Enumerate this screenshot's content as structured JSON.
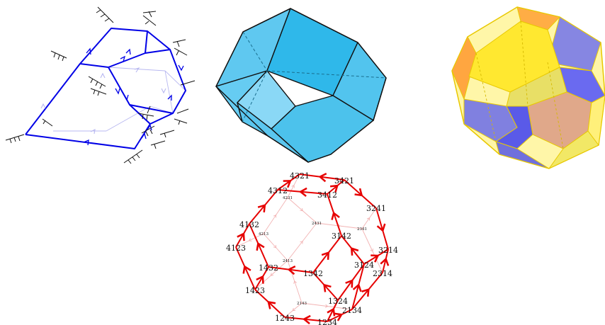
{
  "colors": {
    "blue_edge": "#0000e6",
    "blue_faint": "#b8b8f0",
    "cyan_face_light": "#7fd4f5",
    "cyan_face_mid": "#52c4ee",
    "cyan_face_dark": "#2fb3e6",
    "red_edge": "#e60000",
    "red_faint": "#f2b3b3",
    "yellow": "#ffee33",
    "orange": "#ffa640",
    "violet": "#7a7ae6",
    "salmon": "#e4a88a"
  },
  "permutahedron_labels": {
    "front": [
      {
        "id": "p4321",
        "text": "4321"
      },
      {
        "id": "p3421",
        "text": "3421"
      },
      {
        "id": "p4312",
        "text": "4312"
      },
      {
        "id": "p3412",
        "text": "3412"
      },
      {
        "id": "p3241",
        "text": "3241"
      },
      {
        "id": "p4132",
        "text": "4132"
      },
      {
        "id": "p3142",
        "text": "3142"
      },
      {
        "id": "p4123",
        "text": "4123"
      },
      {
        "id": "p3214",
        "text": "3214"
      },
      {
        "id": "p1432",
        "text": "1432"
      },
      {
        "id": "p1342",
        "text": "1342"
      },
      {
        "id": "p3124",
        "text": "3124"
      },
      {
        "id": "p2314",
        "text": "2314"
      },
      {
        "id": "p1423",
        "text": "1423"
      },
      {
        "id": "p1324",
        "text": "1324"
      },
      {
        "id": "p2134",
        "text": "2134"
      },
      {
        "id": "p1243",
        "text": "1243"
      },
      {
        "id": "p1234",
        "text": "1234"
      }
    ],
    "back": [
      {
        "id": "p4231",
        "text": "4231"
      },
      {
        "id": "p2431",
        "text": "2431"
      },
      {
        "id": "p2341",
        "text": "2341"
      },
      {
        "id": "p4213",
        "text": "4213"
      },
      {
        "id": "p2413",
        "text": "2413"
      },
      {
        "id": "p2143",
        "text": "2143"
      }
    ]
  }
}
